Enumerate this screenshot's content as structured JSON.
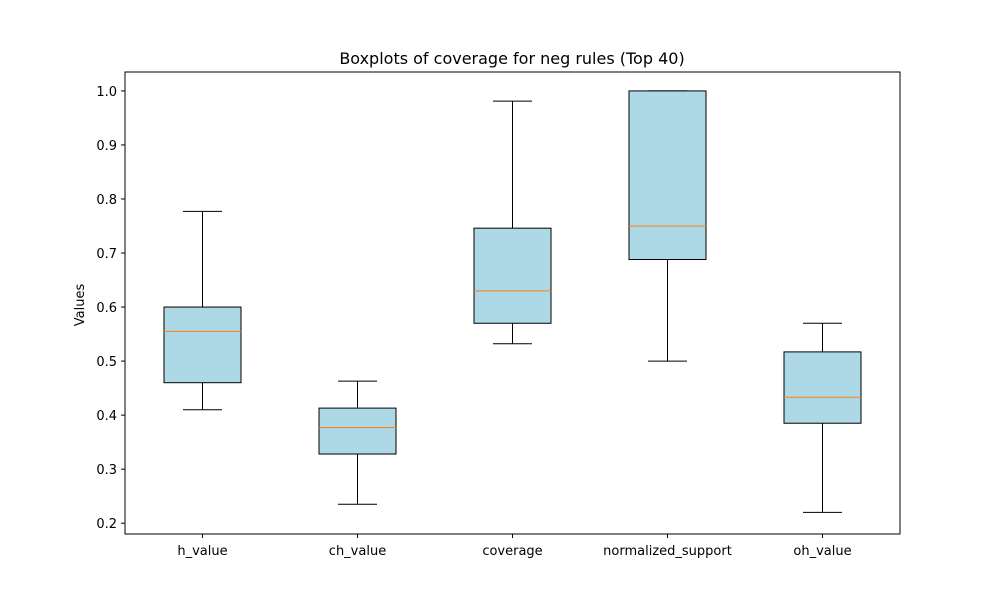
{
  "chart_data": {
    "type": "box",
    "title": "Boxplots of coverage for neg rules (Top 40)",
    "xlabel": "",
    "ylabel": "Values",
    "ylim": [
      0.18,
      1.035
    ],
    "yticks": [
      "0.2",
      "0.3",
      "0.4",
      "0.5",
      "0.6",
      "0.7",
      "0.8",
      "0.9",
      "1.0"
    ],
    "grid": false,
    "colors": {
      "box_fill": "#add8e6",
      "median": "#ff7f0e",
      "stroke": "#000000"
    },
    "categories": [
      "h_value",
      "ch_value",
      "coverage",
      "normalized_support",
      "oh_value"
    ],
    "boxes": [
      {
        "whisker_low": 0.41,
        "q1": 0.46,
        "median": 0.555,
        "q3": 0.6,
        "whisker_high": 0.777
      },
      {
        "whisker_low": 0.235,
        "q1": 0.328,
        "median": 0.377,
        "q3": 0.413,
        "whisker_high": 0.463
      },
      {
        "whisker_low": 0.532,
        "q1": 0.57,
        "median": 0.63,
        "q3": 0.746,
        "whisker_high": 0.981
      },
      {
        "whisker_low": 0.5,
        "q1": 0.688,
        "median": 0.75,
        "q3": 1.0,
        "whisker_high": 1.0
      },
      {
        "whisker_low": 0.22,
        "q1": 0.385,
        "median": 0.433,
        "q3": 0.517,
        "whisker_high": 0.57
      }
    ]
  }
}
